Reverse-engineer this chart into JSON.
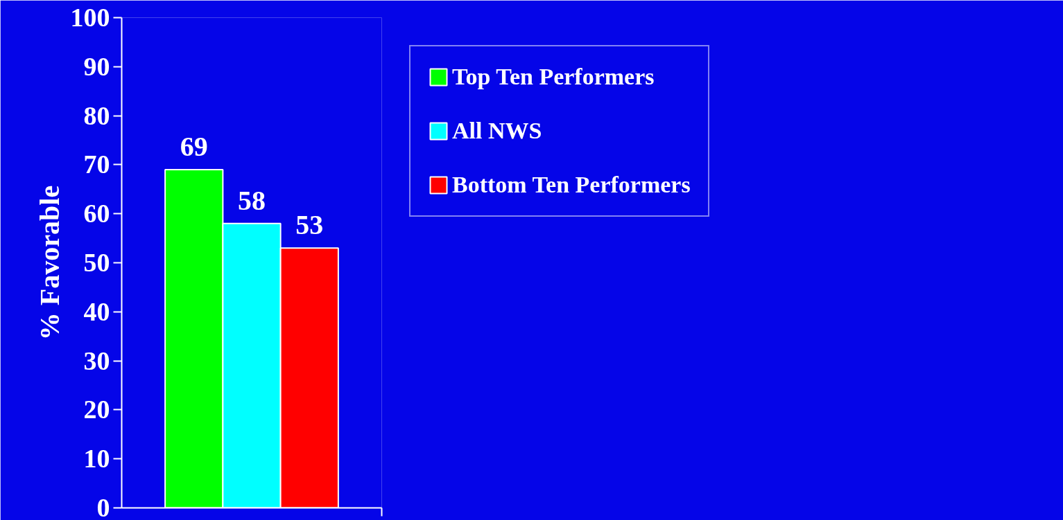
{
  "chart_data": {
    "type": "bar",
    "ylabel": "% Favorable",
    "categories": [
      null
    ],
    "series": [
      {
        "name": "Top Ten Performers",
        "color": "#00ff00",
        "values": [
          69
        ]
      },
      {
        "name": "All NWS",
        "color": "#00ffff",
        "values": [
          58
        ]
      },
      {
        "name": "Bottom Ten Performers",
        "color": "#ff0000",
        "values": [
          53
        ]
      }
    ],
    "ylim": [
      0,
      100
    ],
    "yticks": [
      0,
      10,
      20,
      30,
      40,
      50,
      60,
      70,
      80,
      90,
      100
    ],
    "data_labels": true,
    "legend": "right",
    "grid": false
  }
}
